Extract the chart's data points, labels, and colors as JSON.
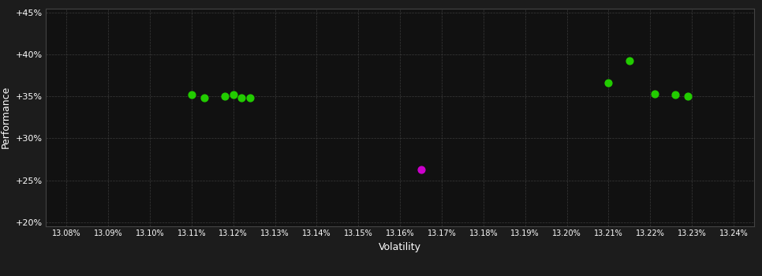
{
  "background_color": "#1c1c1c",
  "plot_bg_color": "#111111",
  "grid_color": "#444444",
  "text_color": "#ffffff",
  "xlabel": "Volatility",
  "ylabel": "Performance",
  "xlim": [
    13.075,
    13.245
  ],
  "ylim": [
    0.195,
    0.455
  ],
  "xticks": [
    13.08,
    13.09,
    13.1,
    13.11,
    13.12,
    13.13,
    13.14,
    13.15,
    13.16,
    13.17,
    13.18,
    13.19,
    13.2,
    13.21,
    13.22,
    13.23,
    13.24
  ],
  "yticks": [
    0.2,
    0.25,
    0.3,
    0.35,
    0.4,
    0.45
  ],
  "green_points": [
    [
      13.11,
      0.352
    ],
    [
      13.113,
      0.348
    ],
    [
      13.118,
      0.35
    ],
    [
      13.12,
      0.352
    ],
    [
      13.122,
      0.348
    ],
    [
      13.124,
      0.348
    ],
    [
      13.21,
      0.366
    ],
    [
      13.215,
      0.392
    ],
    [
      13.221,
      0.353
    ],
    [
      13.226,
      0.352
    ],
    [
      13.229,
      0.35
    ]
  ],
  "purple_points": [
    [
      13.165,
      0.263
    ]
  ],
  "green_color": "#22cc00",
  "purple_color": "#cc00cc",
  "marker_size": 40
}
